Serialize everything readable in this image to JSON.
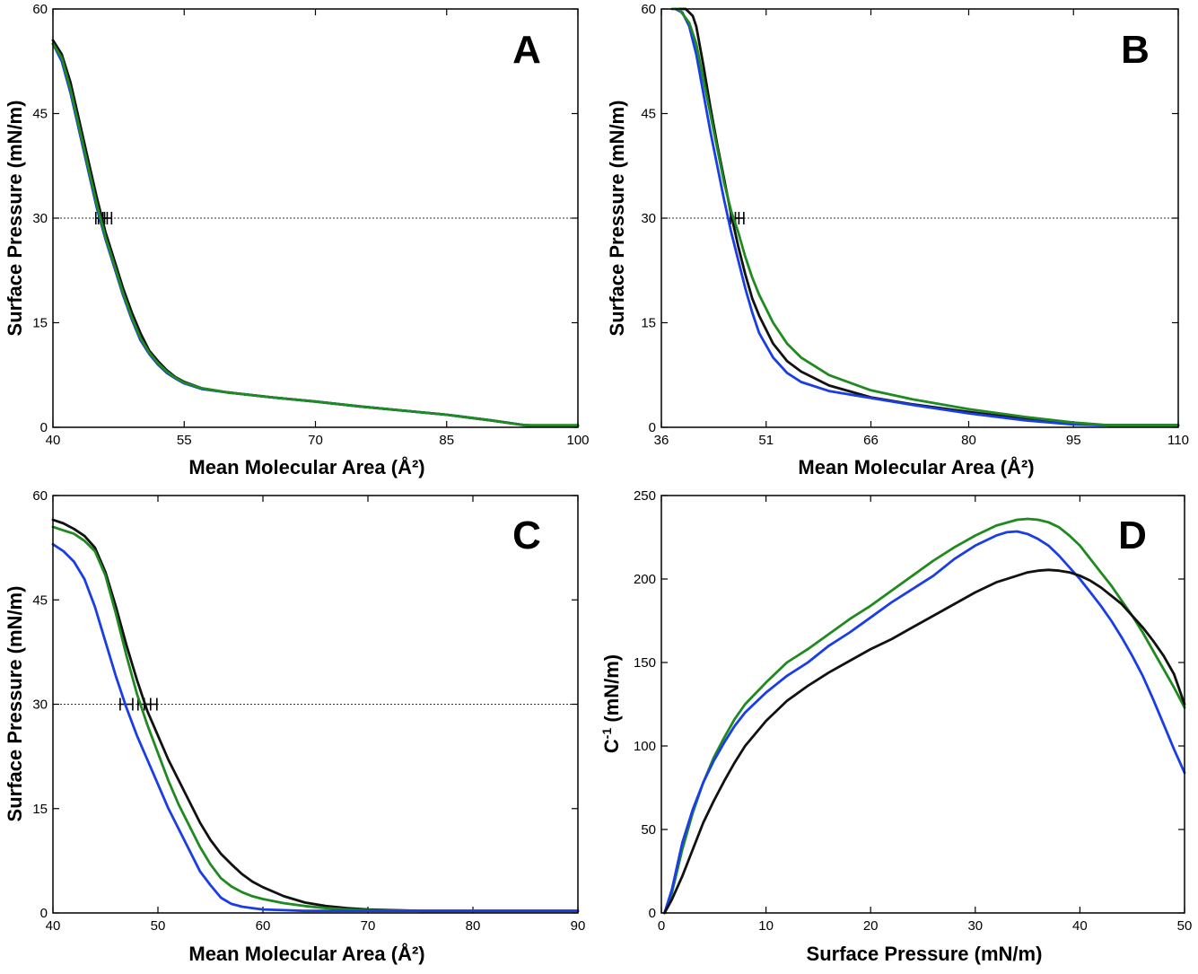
{
  "figure": {
    "series_colors": {
      "black": "#111111",
      "green": "#1f8a1f",
      "blue": "#1a3de8"
    }
  },
  "chart_data": [
    {
      "panel": "A",
      "type": "line",
      "xlabel": "Mean Molecular Area (Å²)",
      "ylabel": "Surface Pressure (mN/m)",
      "xlim": [
        40,
        100
      ],
      "ylim": [
        0,
        60
      ],
      "xticks": [
        40,
        55,
        70,
        85,
        100
      ],
      "yticks": [
        0,
        15,
        30,
        45,
        60
      ],
      "reference_line": {
        "y": 30,
        "style": "dotted"
      },
      "error_bars": {
        "y": 30,
        "x_values": [
          45.4,
          45.7,
          46.2
        ],
        "half_width": 0.5
      },
      "series": [
        {
          "color": "#111111",
          "x": [
            40.0,
            41.0,
            42.0,
            43.0,
            44.0,
            45.0,
            46.0,
            47.0,
            48.0,
            49.0,
            50.0,
            51.0,
            52.0,
            53.0,
            54.0,
            55.0,
            57.0,
            60.0,
            65.0,
            70.0,
            75.0,
            80.0,
            85.0,
            90.0,
            94.0,
            96.0,
            100.0
          ],
          "y": [
            55.5,
            53.5,
            49.5,
            44.0,
            38.5,
            33.0,
            28.0,
            24.0,
            20.0,
            16.5,
            13.5,
            11.0,
            9.5,
            8.2,
            7.2,
            6.5,
            5.6,
            5.0,
            4.3,
            3.7,
            3.0,
            2.4,
            1.8,
            1.0,
            0.3,
            0.2,
            0.2
          ]
        },
        {
          "color": "#1a3de8",
          "x": [
            40.0,
            41.0,
            42.0,
            43.0,
            44.0,
            45.0,
            46.0,
            47.0,
            48.0,
            49.0,
            50.0,
            51.0,
            52.0,
            53.0,
            54.0,
            55.0,
            57.0,
            60.0,
            65.0,
            70.0,
            75.0,
            80.0,
            85.0,
            90.0,
            94.0,
            96.0,
            100.0
          ],
          "y": [
            55.0,
            52.5,
            48.0,
            42.5,
            37.0,
            31.5,
            27.0,
            23.0,
            19.0,
            15.5,
            12.5,
            10.5,
            9.0,
            7.8,
            7.0,
            6.3,
            5.5,
            5.0,
            4.3,
            3.7,
            3.0,
            2.4,
            1.8,
            1.0,
            0.3,
            0.2,
            0.2
          ]
        },
        {
          "color": "#1f8a1f",
          "x": [
            40.0,
            41.0,
            42.0,
            43.0,
            44.0,
            45.0,
            46.0,
            47.0,
            48.0,
            49.0,
            50.0,
            51.0,
            52.0,
            53.0,
            54.0,
            55.0,
            57.0,
            60.0,
            65.0,
            70.0,
            75.0,
            80.0,
            85.0,
            90.0,
            94.0,
            96.0,
            100.0
          ],
          "y": [
            55.0,
            53.0,
            48.5,
            43.0,
            37.5,
            32.0,
            27.3,
            23.3,
            19.3,
            15.8,
            12.8,
            10.7,
            9.2,
            8.0,
            7.1,
            6.4,
            5.6,
            5.0,
            4.3,
            3.7,
            3.0,
            2.4,
            1.8,
            1.0,
            0.3,
            0.3,
            0.3
          ]
        }
      ]
    },
    {
      "panel": "B",
      "type": "line",
      "xlabel": "Mean Molecular Area (Å²)",
      "ylabel": "Surface Pressure (mN/m)",
      "xlim": [
        36,
        110
      ],
      "ylim": [
        0,
        60
      ],
      "xticks": [
        36,
        51,
        66,
        80,
        95,
        110
      ],
      "yticks": [
        0,
        15,
        30,
        45,
        60
      ],
      "reference_line": {
        "y": 30,
        "style": "dotted"
      },
      "error_bars": {
        "y": 30,
        "x_values": [
          46.5,
          47.2
        ],
        "half_width": 0.6
      },
      "series": [
        {
          "color": "#111111",
          "x": [
            38.5,
            39.5,
            40.5,
            41.0,
            42.0,
            43.0,
            44.0,
            45.0,
            46.0,
            47.0,
            48.0,
            49.0,
            50.0,
            52.0,
            54.0,
            56.0,
            60.0,
            66.0,
            72.0,
            80.0,
            88.0,
            95.0,
            100.0,
            110.0
          ],
          "y": [
            60.0,
            60.0,
            59.0,
            57.5,
            52.0,
            46.0,
            40.5,
            35.5,
            30.5,
            26.0,
            22.0,
            18.5,
            16.0,
            12.0,
            9.5,
            8.0,
            6.0,
            4.3,
            3.3,
            2.2,
            1.2,
            0.5,
            0.3,
            0.3
          ]
        },
        {
          "color": "#1a3de8",
          "x": [
            38.0,
            39.0,
            40.0,
            41.0,
            42.0,
            43.0,
            44.0,
            45.0,
            46.0,
            47.0,
            48.0,
            49.0,
            50.0,
            52.0,
            54.0,
            56.0,
            60.0,
            66.0,
            72.0,
            80.0,
            88.0,
            95.0,
            100.0,
            110.0
          ],
          "y": [
            60.0,
            59.5,
            57.5,
            53.5,
            48.0,
            42.5,
            37.5,
            32.5,
            28.0,
            24.0,
            20.0,
            16.5,
            13.5,
            10.0,
            7.8,
            6.5,
            5.2,
            4.2,
            3.2,
            2.0,
            1.0,
            0.4,
            0.3,
            0.3
          ]
        },
        {
          "color": "#1f8a1f",
          "x": [
            37.5,
            38.5,
            40.0,
            41.0,
            42.0,
            43.0,
            44.0,
            45.0,
            46.0,
            47.0,
            48.0,
            49.0,
            50.0,
            52.0,
            54.0,
            56.0,
            60.0,
            66.0,
            72.0,
            80.0,
            88.0,
            95.0,
            100.0,
            110.0
          ],
          "y": [
            60.0,
            60.0,
            58.0,
            55.0,
            50.0,
            45.0,
            40.0,
            35.0,
            31.0,
            28.0,
            24.5,
            21.5,
            19.0,
            15.0,
            12.0,
            10.0,
            7.5,
            5.3,
            4.0,
            2.6,
            1.5,
            0.7,
            0.3,
            0.3
          ]
        }
      ]
    },
    {
      "panel": "C",
      "type": "line",
      "xlabel": "Mean Molecular Area (Å²)",
      "ylabel": "Surface Pressure (mN/m)",
      "xlim": [
        40,
        90
      ],
      "ylim": [
        0,
        60
      ],
      "xticks": [
        40,
        50,
        60,
        70,
        80,
        90
      ],
      "yticks": [
        0,
        15,
        30,
        45,
        60
      ],
      "reference_line": {
        "y": 30,
        "style": "dotted"
      },
      "error_bars": {
        "y": 30,
        "x_values": [
          47.0,
          48.7,
          49.3
        ],
        "half_width": 0.6
      },
      "series": [
        {
          "color": "#111111",
          "x": [
            40,
            41,
            42,
            43,
            44,
            45,
            46,
            47,
            48,
            49,
            50,
            51,
            52,
            53,
            54,
            55,
            56,
            57,
            58,
            59,
            60,
            62,
            64,
            66,
            68,
            70,
            75,
            80,
            90
          ],
          "y": [
            56.5,
            56.0,
            55.2,
            54.2,
            52.5,
            49.0,
            44.0,
            38.5,
            33.5,
            29.0,
            25.5,
            22.0,
            19.0,
            16.0,
            13.0,
            10.5,
            8.5,
            7.0,
            5.6,
            4.5,
            3.7,
            2.4,
            1.5,
            1.0,
            0.7,
            0.5,
            0.3,
            0.3,
            0.3
          ]
        },
        {
          "color": "#1f8a1f",
          "x": [
            40,
            41,
            42,
            43,
            44,
            45,
            46,
            47,
            48,
            49,
            50,
            51,
            52,
            53,
            54,
            55,
            56,
            57,
            58,
            59,
            60,
            62,
            64,
            66,
            68,
            70,
            75,
            80,
            90
          ],
          "y": [
            55.5,
            55.0,
            54.5,
            53.5,
            52.0,
            48.5,
            43.0,
            37.0,
            31.5,
            27.0,
            23.0,
            19.0,
            15.5,
            12.5,
            9.5,
            7.0,
            5.0,
            3.8,
            3.0,
            2.4,
            2.0,
            1.4,
            1.0,
            0.7,
            0.5,
            0.4,
            0.3,
            0.3,
            0.3
          ]
        },
        {
          "color": "#1a3de8",
          "x": [
            40,
            41,
            42,
            43,
            44,
            45,
            46,
            47,
            48,
            49,
            50,
            51,
            52,
            53,
            54,
            55,
            56,
            57,
            58,
            59,
            60,
            62,
            64,
            66,
            68,
            70,
            75,
            80,
            90
          ],
          "y": [
            53.0,
            52.0,
            50.5,
            48.0,
            44.0,
            39.0,
            34.0,
            29.5,
            25.5,
            22.0,
            18.5,
            15.0,
            12.0,
            9.0,
            6.0,
            4.0,
            2.2,
            1.3,
            0.9,
            0.7,
            0.5,
            0.4,
            0.3,
            0.3,
            0.3,
            0.3,
            0.3,
            0.3,
            0.3
          ]
        }
      ]
    },
    {
      "panel": "D",
      "type": "line",
      "xlabel": "Surface Pressure (mN/m)",
      "ylabel_main": "C",
      "ylabel_sup": "-1",
      "ylabel_rest": " (mN/m)",
      "xlim": [
        0,
        50
      ],
      "ylim": [
        0,
        250
      ],
      "xticks": [
        0,
        10,
        20,
        30,
        40,
        50
      ],
      "yticks": [
        0,
        50,
        100,
        150,
        200,
        250
      ],
      "series": [
        {
          "color": "#1f8a1f",
          "x": [
            0.3,
            1,
            2,
            3,
            4,
            5,
            6,
            7,
            8,
            10,
            12,
            14,
            16,
            18,
            20,
            22,
            24,
            26,
            28,
            30,
            32,
            34,
            35,
            36,
            37,
            38,
            39,
            40,
            41,
            42,
            43,
            44,
            45,
            46,
            47,
            48,
            49,
            50
          ],
          "y": [
            0,
            12,
            38,
            60,
            78,
            93,
            105,
            116,
            125,
            138,
            150,
            158,
            167,
            176,
            184,
            193,
            202,
            211,
            219,
            226,
            232,
            235.5,
            236,
            235.5,
            234,
            231,
            226,
            220,
            212,
            204,
            196,
            187,
            178,
            168,
            157,
            146,
            135,
            123
          ]
        },
        {
          "color": "#1a3de8",
          "x": [
            0.3,
            1,
            2,
            3,
            4,
            5,
            6,
            7,
            8,
            10,
            12,
            14,
            16,
            18,
            20,
            22,
            24,
            26,
            28,
            30,
            32,
            33,
            34,
            35,
            36,
            37,
            38,
            39,
            40,
            41,
            42,
            43,
            44,
            45,
            46,
            47,
            48,
            49,
            50
          ],
          "y": [
            0,
            14,
            42,
            62,
            78,
            91,
            102,
            112,
            120,
            132,
            142,
            150,
            160,
            168,
            177,
            186,
            194,
            202,
            212,
            220,
            226,
            228,
            228.5,
            227,
            224,
            220,
            214,
            207,
            200,
            192,
            184,
            175,
            165,
            154,
            142,
            128,
            113,
            98,
            84
          ]
        },
        {
          "color": "#111111",
          "x": [
            0.3,
            1,
            2,
            3,
            4,
            5,
            6,
            7,
            8,
            10,
            12,
            14,
            16,
            18,
            20,
            22,
            24,
            26,
            28,
            30,
            32,
            34,
            35,
            36,
            37,
            38,
            39,
            40,
            41,
            42,
            43,
            44,
            45,
            46,
            47,
            48,
            49,
            50
          ],
          "y": [
            0,
            8,
            22,
            38,
            54,
            67,
            79,
            90,
            100,
            115,
            127,
            136,
            144,
            151,
            158,
            164,
            171,
            178,
            185,
            192,
            198,
            202,
            204,
            205,
            205.5,
            205,
            204,
            202,
            199,
            195,
            190,
            185,
            178,
            171,
            163,
            154,
            143,
            125
          ]
        }
      ]
    }
  ]
}
